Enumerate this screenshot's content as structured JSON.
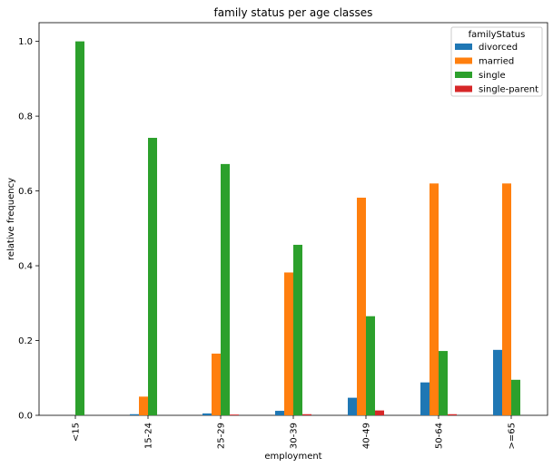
{
  "chart_data": {
    "type": "bar",
    "title": "family status per age classes",
    "xlabel": "employment",
    "ylabel": "relative frequency",
    "categories": [
      "<15",
      "15-24",
      "25-29",
      "30-39",
      "40-49",
      "50-64",
      ">=65"
    ],
    "ylim": [
      0,
      1.05
    ],
    "yticks": [
      "0.0",
      "0.2",
      "0.4",
      "0.6",
      "0.8",
      "1.0"
    ],
    "ytick_values": [
      0,
      0.2,
      0.4,
      0.6,
      0.8,
      1.0
    ],
    "grid": false,
    "legend": {
      "title": "familyStatus",
      "placement": "top-right"
    },
    "series": [
      {
        "name": "divorced",
        "color": "#1f77b4",
        "values": [
          0.0,
          0.003,
          0.005,
          0.012,
          0.047,
          0.088,
          0.175
        ]
      },
      {
        "name": "married",
        "color": "#ff7f0e",
        "values": [
          0.0,
          0.05,
          0.165,
          0.382,
          0.582,
          0.62,
          0.62
        ]
      },
      {
        "name": "single",
        "color": "#2ca02c",
        "values": [
          1.0,
          0.742,
          0.672,
          0.456,
          0.265,
          0.172,
          0.095
        ]
      },
      {
        "name": "single-parent",
        "color": "#d62728",
        "values": [
          0.0,
          0.0,
          0.002,
          0.003,
          0.013,
          0.003,
          0.0
        ]
      }
    ]
  }
}
